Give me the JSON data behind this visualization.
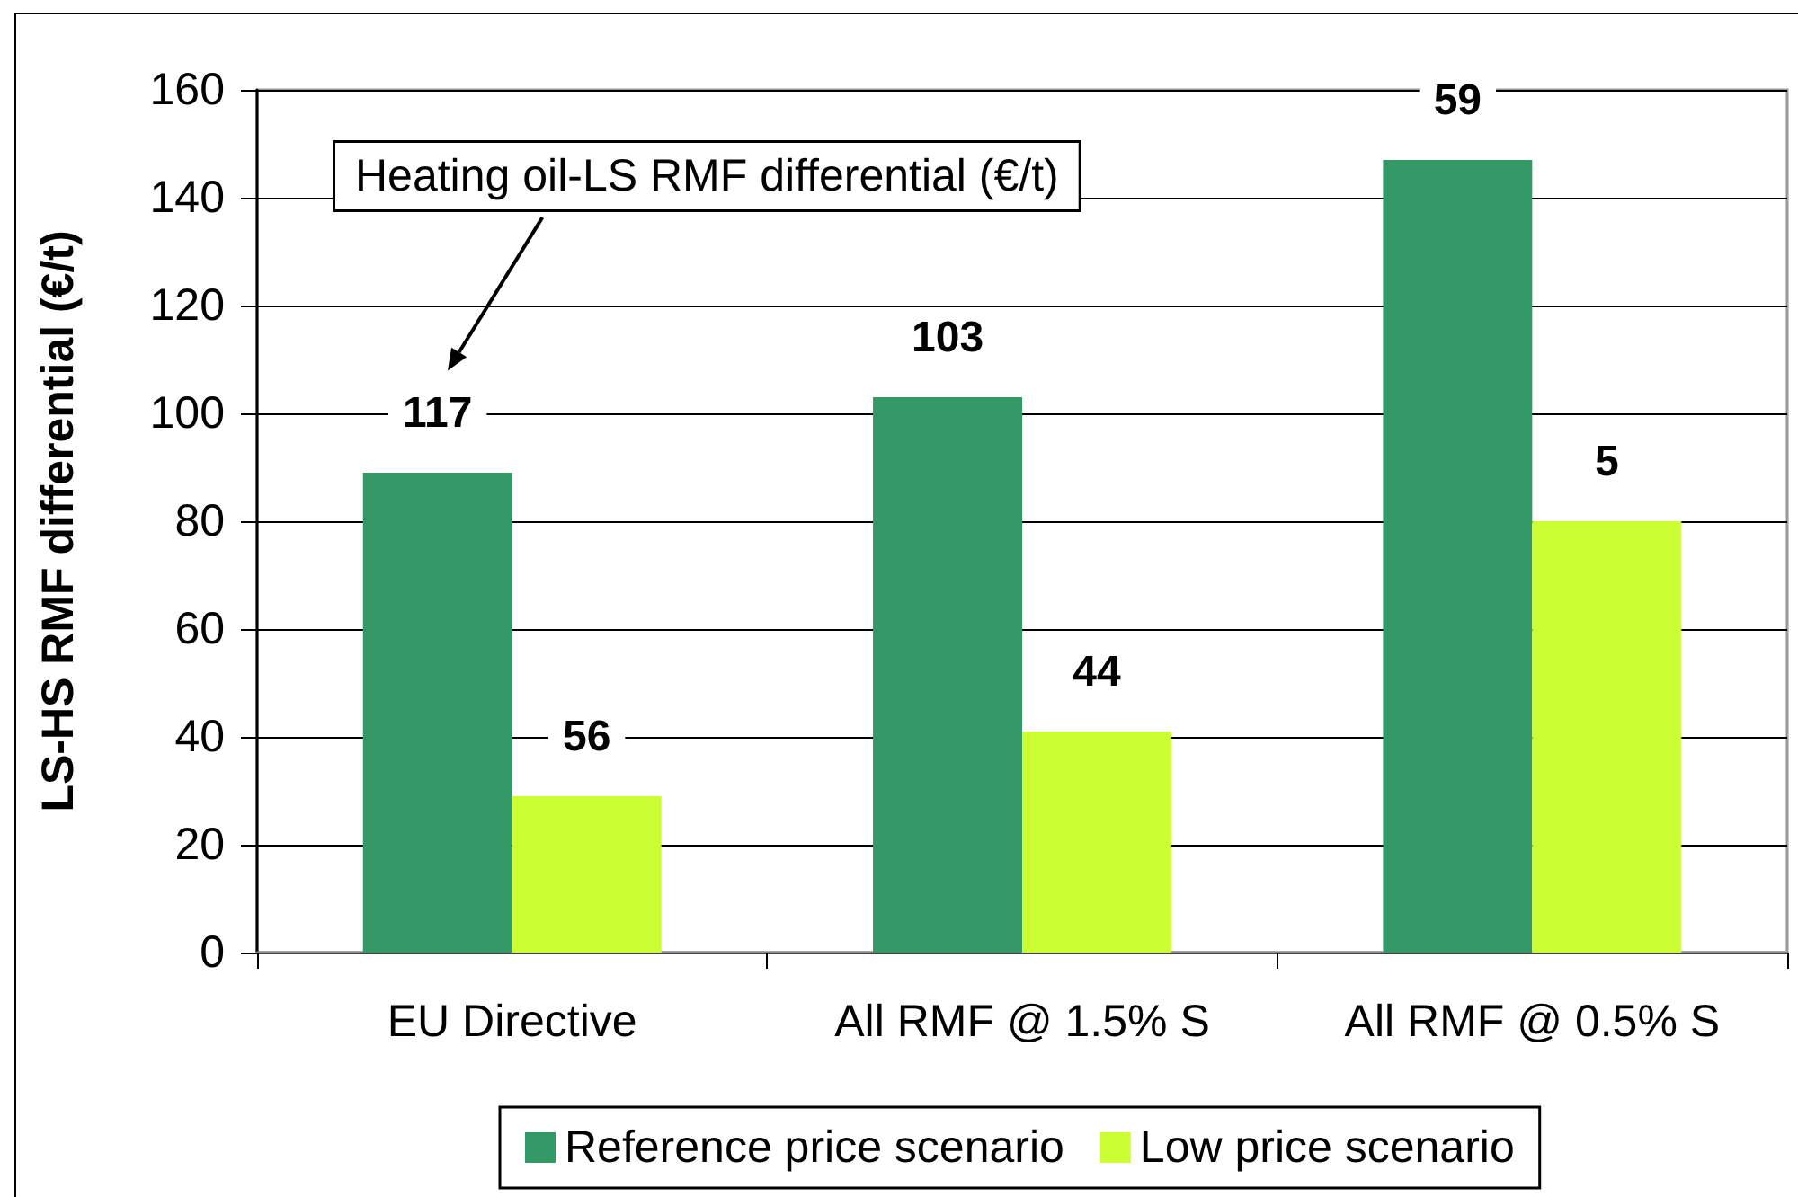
{
  "chart_data": {
    "type": "bar",
    "ylabel": "LS-HS RMF differential (€/t)",
    "categories": [
      "EU Directive",
      "All RMF @ 1.5% S",
      "All RMF @ 0.5% S"
    ],
    "series": [
      {
        "name": "Reference price scenario",
        "color": "#339966",
        "values": [
          89,
          103,
          147
        ]
      },
      {
        "name": "Low price scenario",
        "color": "#ccff33",
        "values": [
          29,
          41,
          80
        ]
      }
    ],
    "ylim": [
      0,
      160
    ],
    "yticks": [
      0,
      20,
      40,
      60,
      80,
      100,
      120,
      140,
      160
    ],
    "grid": "y",
    "legend": "bottom",
    "annotations": [
      "Heating oil-LS RMF differential (€/t)",
      {
        "text": "117",
        "x": "EU Directive",
        "y": 89
      },
      {
        "text": "56",
        "x": "EU Directive",
        "y": 29
      },
      {
        "text": "103",
        "x": "All RMF @ 1.5% S",
        "y": 103
      },
      {
        "text": "44",
        "x": "All RMF @ 1.5% S",
        "y": 41
      },
      {
        "text": "59",
        "x": "All RMF @ 0.5% S",
        "y": 147
      },
      {
        "text": "5",
        "x": "All RMF @ 0.5% S",
        "y": 80
      }
    ]
  }
}
